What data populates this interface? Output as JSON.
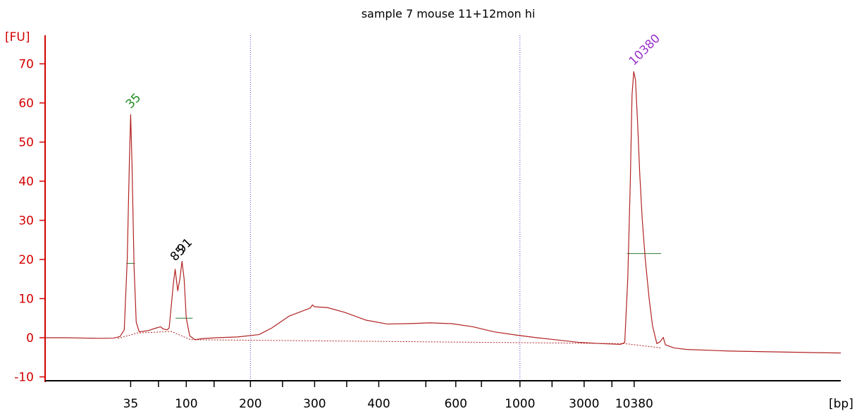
{
  "chart_data": {
    "type": "line",
    "title": "sample 7 mouse 11+12mon hi",
    "ylabel": "[FU]",
    "xlabel": "[bp]",
    "ylim": [
      -11,
      76
    ],
    "y_ticks": [
      -10,
      0,
      10,
      20,
      30,
      40,
      50,
      60,
      70
    ],
    "x_tick_labels": [
      "35",
      "100",
      "200",
      "300",
      "400",
      "600",
      "1000",
      "3000",
      "10380"
    ],
    "peak_labels": [
      {
        "text": "35",
        "bp": "35",
        "fu": 57,
        "color": "#228B22"
      },
      {
        "text": "85",
        "bp": "85",
        "fu": 18,
        "color": "#000000"
      },
      {
        "text": "91",
        "bp": "91",
        "fu": 20,
        "color": "#000000"
      },
      {
        "text": "10380",
        "bp": "10380",
        "fu": 68,
        "color": "#9932CC"
      }
    ],
    "series": [
      {
        "color": "#B22222",
        "points": [
          [
            0.0,
            0.0
          ],
          [
            0.5,
            0.0
          ],
          [
            1.0,
            -0.1
          ],
          [
            1.3,
            -0.15
          ],
          [
            1.6,
            -0.1
          ],
          [
            1.75,
            0.3
          ],
          [
            1.85,
            2
          ],
          [
            1.92,
            20
          ],
          [
            1.97,
            45
          ],
          [
            2.0,
            57
          ],
          [
            2.03,
            45
          ],
          [
            2.08,
            18
          ],
          [
            2.13,
            4
          ],
          [
            2.2,
            1.5
          ],
          [
            2.4,
            1.8
          ],
          [
            2.6,
            2.5
          ],
          [
            2.7,
            2.8
          ],
          [
            2.75,
            2.3
          ],
          [
            2.85,
            2.0
          ],
          [
            2.9,
            2.5
          ],
          [
            3.0,
            14
          ],
          [
            3.04,
            17.5
          ],
          [
            3.1,
            12
          ],
          [
            3.15,
            15
          ],
          [
            3.2,
            19.5
          ],
          [
            3.25,
            15
          ],
          [
            3.3,
            5
          ],
          [
            3.38,
            0.5
          ],
          [
            3.5,
            -0.5
          ],
          [
            3.7,
            -0.2
          ],
          [
            4.0,
            0.0
          ],
          [
            4.5,
            0.2
          ],
          [
            5.0,
            0.8
          ],
          [
            5.3,
            2.5
          ],
          [
            5.7,
            5.5
          ],
          [
            6.2,
            7.6
          ],
          [
            6.25,
            8.4
          ],
          [
            6.3,
            7.9
          ],
          [
            6.6,
            7.7
          ],
          [
            7.0,
            6.5
          ],
          [
            7.5,
            4.5
          ],
          [
            8.0,
            3.5
          ],
          [
            8.5,
            3.6
          ],
          [
            9.0,
            3.8
          ],
          [
            9.5,
            3.6
          ],
          [
            10.0,
            2.8
          ],
          [
            10.5,
            1.5
          ],
          [
            11.0,
            0.7
          ],
          [
            11.5,
            0.0
          ],
          [
            12.0,
            -0.6
          ],
          [
            12.5,
            -1.2
          ],
          [
            13.0,
            -1.5
          ],
          [
            13.45,
            -1.7
          ],
          [
            13.55,
            -1.2
          ],
          [
            13.62,
            15
          ],
          [
            13.68,
            40
          ],
          [
            13.72,
            62
          ],
          [
            13.76,
            68
          ],
          [
            13.8,
            66
          ],
          [
            13.85,
            55
          ],
          [
            13.9,
            42
          ],
          [
            13.96,
            30
          ],
          [
            14.03,
            20
          ],
          [
            14.12,
            10
          ],
          [
            14.2,
            3
          ],
          [
            14.3,
            -1.5
          ],
          [
            14.38,
            -1.0
          ],
          [
            14.45,
            0.1
          ],
          [
            14.5,
            -1.8
          ],
          [
            14.7,
            -2.6
          ],
          [
            15.0,
            -3.0
          ],
          [
            16.0,
            -3.4
          ],
          [
            17.0,
            -3.6
          ],
          [
            18.0,
            -3.8
          ],
          [
            18.6,
            -3.9
          ]
        ]
      }
    ]
  }
}
